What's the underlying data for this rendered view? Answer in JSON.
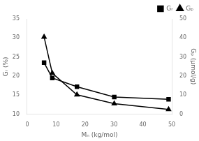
{
  "chart_data": {
    "type": "line",
    "x": [
      5.83,
      8.67,
      17.2,
      30.1,
      48.9
    ],
    "xlabel": "Mₙ (kg/mol)",
    "ylabel": "Gᵣ (%)",
    "y2label": "Gₚ (μmol/g)",
    "xlim": [
      0,
      50
    ],
    "xticks": [
      0,
      10,
      20,
      30,
      40,
      50
    ],
    "ylim": [
      10,
      35
    ],
    "yticks": [
      10,
      15,
      20,
      25,
      30,
      35
    ],
    "y2lim": [
      0,
      50
    ],
    "y2ticks": [
      0,
      10,
      20,
      30,
      40,
      50
    ],
    "grid": false,
    "legend": "upper right",
    "series": [
      {
        "name": "Gᵣ",
        "color": "#000000",
        "marker": "square",
        "values": [
          23.5,
          19.5,
          17.2,
          14.5,
          13.9
        ]
      },
      {
        "name": "Gₚ",
        "color": "#000000",
        "marker": "triangle",
        "values": [
          40.5,
          21.5,
          10.2,
          5.5,
          2.5
        ],
        "axis": "y2"
      }
    ]
  }
}
